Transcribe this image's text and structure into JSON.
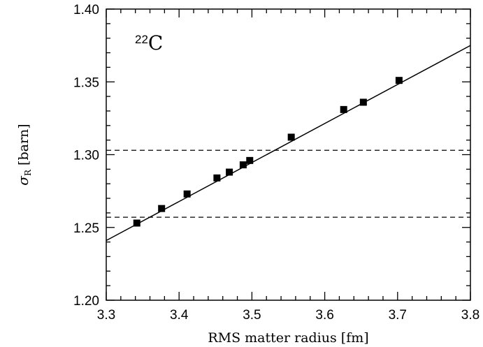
{
  "chart_data": {
    "type": "scatter",
    "xlabel": "RMS matter radius [fm]",
    "ylabel": {
      "symbol": "σ",
      "subscript": "R",
      "unit": " [barn]"
    },
    "xlim": [
      3.3,
      3.8
    ],
    "ylim": [
      1.2,
      1.4
    ],
    "x_ticks": [
      "3.3",
      "3.4",
      "3.5",
      "3.6",
      "3.7",
      "3.8"
    ],
    "y_ticks": [
      "1.20",
      "1.25",
      "1.30",
      "1.35",
      "1.40"
    ],
    "annotation": {
      "superscript": "22",
      "text": "C"
    },
    "grid": false,
    "series": [
      {
        "type": "scatter",
        "marker": "square",
        "color": "#000000",
        "x": [
          3.342,
          3.376,
          3.411,
          3.452,
          3.469,
          3.488,
          3.497,
          3.554,
          3.626,
          3.653,
          3.702
        ],
        "y": [
          1.253,
          1.263,
          1.273,
          1.284,
          1.288,
          1.293,
          1.296,
          1.312,
          1.331,
          1.336,
          1.351
        ]
      },
      {
        "type": "line",
        "style": "solid",
        "color": "#000000",
        "x": [
          3.3,
          3.8
        ],
        "y": [
          1.241,
          1.375
        ]
      }
    ],
    "hlines": [
      {
        "y": 1.303,
        "style": "dashed",
        "color": "#000000"
      },
      {
        "y": 1.257,
        "style": "dashed",
        "color": "#000000"
      }
    ]
  }
}
